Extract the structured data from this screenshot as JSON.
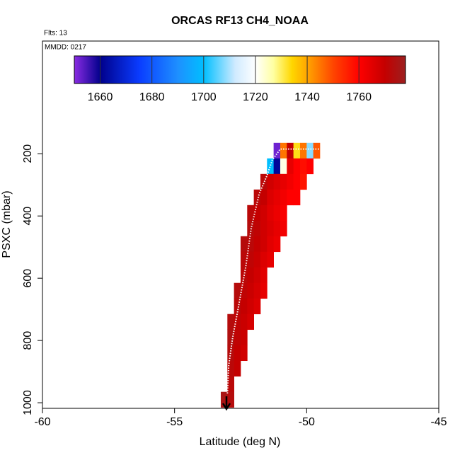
{
  "chart_data": {
    "type": "heatmap",
    "title": "ORCAS RF13 CH4_NOAA",
    "subtitle": "Flts: 13",
    "annotation": "MMDD: 0217",
    "x_label": "Latitude (deg N)",
    "y_label": "PSXC (mbar)",
    "xlim": [
      -60,
      -45
    ],
    "xticks": [
      -60,
      -55,
      -50,
      -45
    ],
    "ylim": [
      1018,
      -162
    ],
    "yticks": [
      200,
      400,
      600,
      800,
      1000
    ],
    "colorbar": {
      "lim": [
        1650,
        1778
      ],
      "ticks": [
        1660,
        1680,
        1700,
        1720,
        1740,
        1760
      ],
      "stops": [
        {
          "value": 1650,
          "color": "#8a2be2"
        },
        {
          "value": 1660,
          "color": "#00008b"
        },
        {
          "value": 1675,
          "color": "#0a3cff"
        },
        {
          "value": 1690,
          "color": "#1e90ff"
        },
        {
          "value": 1700,
          "color": "#00bfff"
        },
        {
          "value": 1712,
          "color": "#cfeaff"
        },
        {
          "value": 1720,
          "color": "#ffffff"
        },
        {
          "value": 1727,
          "color": "#ffffa0"
        },
        {
          "value": 1734,
          "color": "#ffd700"
        },
        {
          "value": 1740,
          "color": "#ffa500"
        },
        {
          "value": 1750,
          "color": "#ff4500"
        },
        {
          "value": 1760,
          "color": "#ff0000"
        },
        {
          "value": 1770,
          "color": "#c40000"
        },
        {
          "value": 1778,
          "color": "#9b2020"
        }
      ]
    },
    "cells": {
      "x": [
        -51.125,
        -50.875,
        -50.625,
        -50.375,
        -50.125,
        -49.875,
        -49.625,
        -51.375,
        -51.125,
        -50.875,
        -50.625,
        -50.375,
        -50.125,
        -49.875,
        -51.625,
        -51.375,
        -51.125,
        -50.875,
        -50.625,
        -50.375,
        -50.125,
        -51.875,
        -51.625,
        -51.375,
        -51.125,
        -50.875,
        -50.625,
        -50.375,
        -52.125,
        -51.875,
        -51.625,
        -51.375,
        -51.125,
        -50.875,
        -52.125,
        -51.875,
        -51.625,
        -51.375,
        -51.125,
        -50.875,
        -52.375,
        -52.125,
        -51.875,
        -51.625,
        -51.375,
        -51.125,
        -52.375,
        -52.125,
        -51.875,
        -51.625,
        -51.375,
        -52.375,
        -52.125,
        -51.875,
        -51.625,
        -52.625,
        -52.375,
        -52.125,
        -51.875,
        -51.625,
        -52.625,
        -52.375,
        -52.125,
        -51.875,
        -52.875,
        -52.625,
        -52.375,
        -52.125,
        -52.875,
        -52.625,
        -52.375,
        -52.875,
        -52.625,
        -52.375,
        -52.875,
        -52.625,
        -52.875,
        -53.125,
        -52.875
      ],
      "y": [
        190,
        190,
        190,
        190,
        190,
        190,
        190,
        240,
        240,
        240,
        240,
        240,
        240,
        240,
        290,
        290,
        290,
        290,
        290,
        290,
        290,
        340,
        340,
        340,
        340,
        340,
        340,
        340,
        390,
        390,
        390,
        390,
        390,
        390,
        440,
        440,
        440,
        440,
        440,
        440,
        490,
        490,
        490,
        490,
        490,
        490,
        540,
        540,
        540,
        540,
        540,
        590,
        590,
        590,
        590,
        640,
        640,
        640,
        640,
        640,
        690,
        690,
        690,
        690,
        740,
        740,
        740,
        740,
        790,
        790,
        790,
        840,
        840,
        840,
        890,
        890,
        940,
        990,
        990
      ],
      "values": [
        1652,
        1745,
        1770,
        1733,
        1745,
        1708,
        1748,
        1700,
        1662,
        1722,
        1764,
        1760,
        1758,
        1760,
        1772,
        1768,
        1766,
        1764,
        1762,
        1760,
        1757,
        1772,
        1770,
        1766,
        1764,
        1762,
        1760,
        1760,
        1772,
        1770,
        1768,
        1765,
        1763,
        1761,
        1773,
        1771,
        1768,
        1766,
        1764,
        1762,
        1773,
        1772,
        1770,
        1768,
        1765,
        1763,
        1772,
        1771,
        1769,
        1766,
        1764,
        1772,
        1770,
        1768,
        1765,
        1773,
        1771,
        1769,
        1767,
        1764,
        1772,
        1770,
        1768,
        1766,
        1773,
        1771,
        1769,
        1767,
        1774,
        1771,
        1769,
        1773,
        1770,
        1768,
        1772,
        1770,
        1772,
        1775,
        1773
      ]
    },
    "track": {
      "color": "#ffffff",
      "x": [
        -53.0,
        -52.95,
        -52.8,
        -52.6,
        -52.3,
        -52.1,
        -51.8,
        -51.5,
        -51.3,
        -51.0,
        -49.5
      ],
      "y": [
        970,
        880,
        790,
        700,
        560,
        440,
        330,
        270,
        220,
        185,
        185
      ]
    }
  }
}
